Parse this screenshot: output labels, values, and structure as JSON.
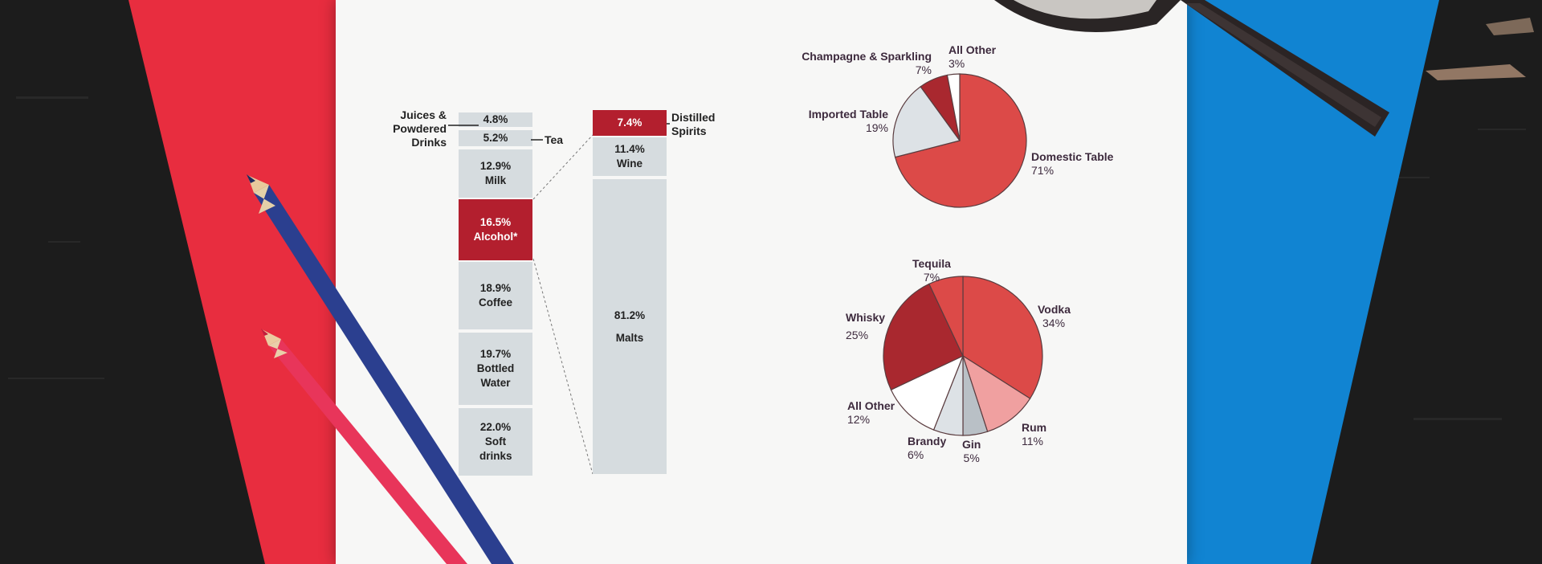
{
  "left_chart": {
    "segments": [
      {
        "value": "4.8%",
        "label": ""
      },
      {
        "value": "5.2%",
        "label": ""
      },
      {
        "value": "12.9%",
        "label": "Milk"
      },
      {
        "value": "16.5%",
        "label": "Alcohol*"
      },
      {
        "value": "18.9%",
        "label": "Coffee"
      },
      {
        "value": "19.7%",
        "label": "Bottled Water"
      },
      {
        "value": "22.0%",
        "label": "Soft drinks"
      }
    ],
    "juices_label": "Juices & Powdered Drinks",
    "tea_label": "Tea"
  },
  "right_bar": {
    "segments": [
      {
        "value": "7.4%",
        "label": ""
      },
      {
        "value": "11.4%",
        "label": "Wine"
      },
      {
        "value": "81.2%",
        "label": "Malts"
      }
    ],
    "spirits_label": "Distilled Spirits"
  },
  "wine_pie": {
    "slices": [
      {
        "name": "Domestic Table",
        "pct": "71%",
        "value": 71
      },
      {
        "name": "Imported Table",
        "pct": "19%",
        "value": 19
      },
      {
        "name": "Champagne & Sparkling",
        "pct": "7%",
        "value": 7
      },
      {
        "name": "All Other",
        "pct": "3%",
        "value": 3
      }
    ]
  },
  "spirits_pie": {
    "slices": [
      {
        "name": "Vodka",
        "pct": "34%",
        "value": 34
      },
      {
        "name": "Rum",
        "pct": "11%",
        "value": 11
      },
      {
        "name": "Gin",
        "pct": "5%",
        "value": 5
      },
      {
        "name": "Brandy",
        "pct": "6%",
        "value": 6
      },
      {
        "name": "All Other",
        "pct": "12%",
        "value": 12
      },
      {
        "name": "Whisky",
        "pct": "25%",
        "value": 25
      },
      {
        "name": "Tequila",
        "pct": "7%",
        "value": 7
      }
    ]
  },
  "colors": {
    "highlight": "#b31f2e",
    "bar_fill": "#d6dcdf",
    "pie_red": "#dc4a48",
    "pie_dark": "#a9282f",
    "pie_pink": "#f0a0a0",
    "pie_light": "#dde2e6",
    "red_paper": "#e82d3f",
    "blue_paper": "#1184d2"
  }
}
